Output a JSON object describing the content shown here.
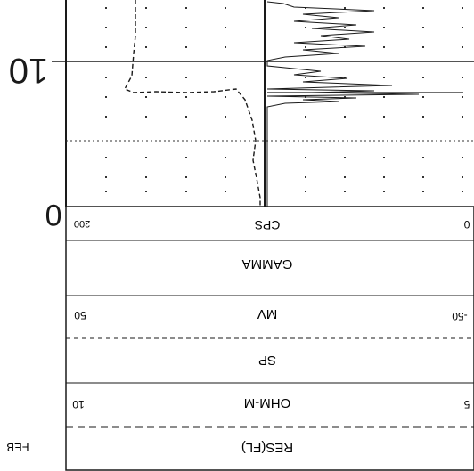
{
  "depth": {
    "label_10": "10",
    "label_0": "0"
  },
  "header": {
    "cps": {
      "title": "CPS",
      "left_value": "200",
      "right_value": "0"
    },
    "gamma": {
      "title": "GAMMA"
    },
    "mv": {
      "title": "MV",
      "left_value": "50",
      "right_value": "-50"
    },
    "sp": {
      "title": "SP"
    },
    "ohm": {
      "title": "OHM-M",
      "left_value": "10",
      "right_value": "5"
    },
    "res": {
      "title": "RES(FL)"
    }
  },
  "footer": {
    "text": "FEB"
  },
  "colors": {
    "ink": "#1a1a1a",
    "grid": "#555555",
    "paper": "#ffffff"
  }
}
